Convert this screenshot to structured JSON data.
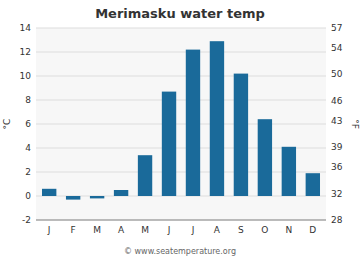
{
  "chart_data": {
    "type": "bar",
    "title": "Merimasku water temp",
    "categories": [
      "J",
      "F",
      "M",
      "A",
      "M",
      "J",
      "J",
      "A",
      "S",
      "O",
      "N",
      "D"
    ],
    "values": [
      0.6,
      -0.3,
      -0.2,
      0.5,
      3.4,
      8.7,
      12.2,
      12.9,
      10.2,
      6.4,
      4.1,
      1.9
    ],
    "color": "#1a6a9a",
    "ylim": [
      -2,
      14
    ],
    "yticks": [
      -2,
      0,
      2,
      4,
      6,
      8,
      10,
      12,
      14
    ],
    "y2lim": [
      28,
      57
    ],
    "y2ticks": [
      28,
      32,
      36,
      39,
      43,
      46,
      50,
      54,
      57
    ],
    "ylabel": "°C",
    "y2label": "°F",
    "grid": true,
    "annotations": [
      "© www.seatemperature.org"
    ]
  }
}
